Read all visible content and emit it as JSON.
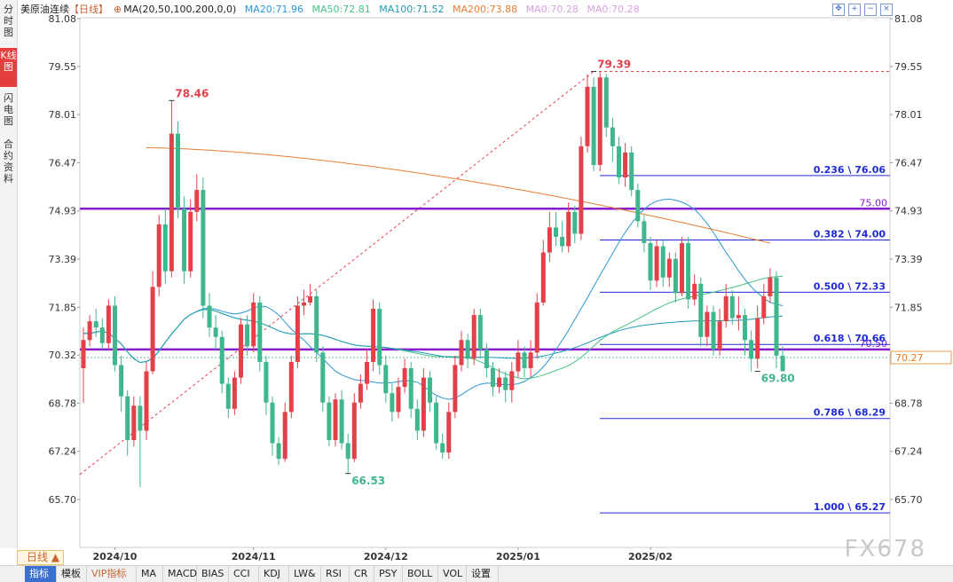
{
  "side_tabs": [
    "分时图",
    "K线图",
    "闪电图",
    "合约资料"
  ],
  "legend": {
    "symbol": "美原油连续",
    "period": "【日线】",
    "ma_params": "MA(20,50,100,200,0,0)",
    "ma20": "MA20:71.96",
    "ma50": "MA50:72.81",
    "ma100": "MA100:71.52",
    "ma200": "MA200:73.88",
    "ma0a": "MA0:70.28",
    "ma0b": "MA0:70.28"
  },
  "colors": {
    "up": "#e2414a",
    "down": "#3fb68b",
    "ma20": "#2a97d8",
    "ma50": "#45c485",
    "ma100": "#1f9bb6",
    "ma200": "#ec7d30",
    "ma0": "#d8a0e0",
    "fib": "#1e2ad6",
    "purple": "#8a1cd0"
  },
  "period_button": "日线",
  "bottom_tabs": [
    "指标",
    "模板",
    "VIP指标",
    "MA",
    "MACD",
    "BIAS",
    "CCI",
    "KDJ",
    "LW&",
    "RSI",
    "CR",
    "PSY",
    "BOLL",
    "VOL",
    "设置"
  ],
  "watermark": "FX678",
  "chart_data": {
    "type": "candlestick",
    "y_ticks": [
      "81.08",
      "79.55",
      "78.01",
      "76.47",
      "74.93",
      "73.39",
      "71.85",
      "70.32",
      "68.78",
      "67.24",
      "65.70"
    ],
    "ylim": [
      65.7,
      81.08
    ],
    "x_labels": [
      {
        "label": "2024/10",
        "index": 5
      },
      {
        "label": "2024/11",
        "index": 27
      },
      {
        "label": "2024/12",
        "index": 48
      },
      {
        "label": "2025/01",
        "index": 69
      },
      {
        "label": "2025/02",
        "index": 90
      }
    ],
    "current_price": "70.27",
    "current_value": 70.27,
    "annotations": [
      {
        "text": "78.46",
        "index": 14,
        "value": 78.46,
        "kind": "high"
      },
      {
        "text": "66.53",
        "index": 42,
        "value": 66.53,
        "kind": "low"
      },
      {
        "text": "79.39",
        "index": 81,
        "value": 79.39,
        "kind": "high"
      },
      {
        "text": "69.80",
        "index": 107,
        "value": 69.8,
        "kind": "low"
      }
    ],
    "fib_levels": [
      {
        "text": "0.236 \\ 76.06",
        "value": 76.06
      },
      {
        "text": "0.382 \\ 74.00",
        "value": 74.0
      },
      {
        "text": "0.500 \\ 72.33",
        "value": 72.33
      },
      {
        "text": "0.618 \\ 70.66",
        "value": 70.66
      },
      {
        "text": "0.786 \\ 68.29",
        "value": 68.29
      },
      {
        "text": "1.000 \\ 65.27",
        "value": 65.27
      }
    ],
    "hlines": [
      {
        "text": "75.00",
        "value": 75.0
      },
      {
        "text": "70.50",
        "value": 70.5
      }
    ],
    "candles": [
      [
        69.9,
        70.8,
        71.2,
        68.8
      ],
      [
        70.8,
        71.4,
        71.6,
        70.6
      ],
      [
        71.4,
        71.2,
        71.8,
        70.9
      ],
      [
        71.2,
        70.7,
        71.5,
        70.5
      ],
      [
        70.7,
        71.9,
        72.1,
        70.5
      ],
      [
        71.9,
        70.0,
        72.2,
        69.8
      ],
      [
        70.0,
        69.0,
        70.3,
        68.5
      ],
      [
        69.0,
        67.6,
        69.2,
        67.1
      ],
      [
        67.6,
        68.7,
        69.0,
        67.4
      ],
      [
        68.7,
        67.9,
        69.0,
        66.1
      ],
      [
        67.9,
        69.8,
        70.1,
        67.6
      ],
      [
        69.8,
        72.5,
        73.0,
        69.7
      ],
      [
        72.5,
        74.5,
        74.8,
        72.2
      ],
      [
        74.5,
        73.0,
        75.0,
        72.6
      ],
      [
        73.0,
        77.4,
        78.46,
        72.8
      ],
      [
        77.4,
        75.0,
        77.8,
        74.7
      ],
      [
        75.0,
        73.0,
        75.4,
        72.6
      ],
      [
        73.0,
        74.9,
        75.3,
        72.8
      ],
      [
        74.9,
        75.6,
        76.1,
        74.6
      ],
      [
        75.6,
        71.9,
        76.0,
        71.5
      ],
      [
        71.9,
        71.2,
        72.3,
        70.9
      ],
      [
        71.2,
        70.9,
        71.6,
        70.5
      ],
      [
        70.9,
        69.4,
        71.1,
        69.1
      ],
      [
        69.4,
        68.6,
        69.6,
        68.3
      ],
      [
        68.6,
        69.6,
        69.8,
        68.4
      ],
      [
        69.6,
        71.3,
        71.5,
        69.4
      ],
      [
        71.3,
        70.6,
        71.6,
        70.3
      ],
      [
        70.6,
        72.0,
        72.3,
        70.4
      ],
      [
        72.0,
        70.1,
        72.2,
        69.8
      ],
      [
        70.1,
        68.8,
        70.3,
        68.4
      ],
      [
        68.8,
        67.5,
        69.0,
        67.1
      ],
      [
        67.5,
        67.0,
        67.7,
        66.8
      ],
      [
        67.0,
        68.5,
        68.8,
        66.9
      ],
      [
        68.5,
        70.1,
        70.3,
        68.3
      ],
      [
        70.1,
        71.9,
        72.2,
        69.9
      ],
      [
        71.9,
        72.0,
        72.4,
        71.6
      ],
      [
        72.0,
        72.2,
        72.6,
        71.9
      ],
      [
        72.2,
        70.4,
        72.4,
        70.1
      ],
      [
        70.4,
        68.8,
        70.6,
        68.5
      ],
      [
        68.8,
        67.6,
        69.0,
        67.4
      ],
      [
        67.6,
        68.9,
        69.1,
        67.4
      ],
      [
        68.9,
        67.5,
        69.2,
        67.3
      ],
      [
        67.5,
        67.0,
        67.8,
        66.53
      ],
      [
        67.0,
        68.8,
        69.1,
        66.9
      ],
      [
        68.8,
        69.4,
        69.7,
        68.6
      ],
      [
        69.4,
        70.1,
        70.5,
        69.2
      ],
      [
        70.1,
        71.8,
        72.1,
        69.8
      ],
      [
        71.8,
        70.0,
        72.0,
        69.7
      ],
      [
        70.0,
        69.1,
        70.3,
        68.8
      ],
      [
        69.1,
        68.5,
        69.4,
        68.2
      ],
      [
        68.5,
        69.3,
        69.6,
        68.3
      ],
      [
        69.3,
        69.9,
        70.2,
        69.1
      ],
      [
        69.9,
        68.6,
        70.1,
        68.3
      ],
      [
        68.6,
        67.9,
        68.9,
        67.6
      ],
      [
        67.9,
        69.6,
        69.9,
        67.7
      ],
      [
        69.6,
        68.8,
        69.8,
        68.5
      ],
      [
        68.8,
        67.5,
        69.0,
        67.3
      ],
      [
        67.5,
        67.2,
        67.8,
        67.0
      ],
      [
        67.2,
        68.5,
        68.8,
        67.0
      ],
      [
        68.5,
        70.0,
        70.3,
        68.3
      ],
      [
        70.0,
        70.8,
        71.1,
        69.8
      ],
      [
        70.8,
        70.2,
        71.0,
        69.9
      ],
      [
        70.2,
        71.6,
        71.8,
        70.0
      ],
      [
        71.6,
        70.5,
        71.8,
        70.2
      ],
      [
        70.5,
        69.9,
        70.7,
        69.6
      ],
      [
        69.9,
        69.3,
        70.1,
        69.0
      ],
      [
        69.3,
        69.6,
        69.9,
        69.1
      ],
      [
        69.6,
        69.2,
        69.8,
        68.8
      ],
      [
        69.2,
        69.8,
        70.1,
        68.8
      ],
      [
        69.8,
        70.4,
        70.8,
        69.6
      ],
      [
        70.4,
        69.9,
        70.6,
        69.6
      ],
      [
        69.9,
        70.4,
        70.8,
        69.6
      ],
      [
        70.4,
        72.0,
        72.3,
        70.2
      ],
      [
        72.0,
        73.6,
        74.0,
        71.9
      ],
      [
        73.6,
        74.4,
        74.9,
        73.3
      ],
      [
        74.4,
        74.1,
        74.9,
        73.8
      ],
      [
        74.1,
        73.8,
        74.6,
        73.6
      ],
      [
        73.8,
        74.9,
        75.2,
        73.6
      ],
      [
        74.9,
        74.2,
        75.1,
        73.9
      ],
      [
        74.2,
        77.0,
        77.3,
        74.0
      ],
      [
        77.0,
        78.9,
        79.3,
        76.8
      ],
      [
        78.9,
        76.4,
        79.2,
        76.2
      ],
      [
        76.4,
        79.2,
        79.39,
        76.2
      ],
      [
        79.2,
        77.6,
        79.3,
        77.3
      ],
      [
        77.6,
        77.0,
        77.9,
        76.5
      ],
      [
        77.0,
        76.0,
        77.3,
        75.8
      ],
      [
        76.0,
        76.8,
        77.1,
        75.7
      ],
      [
        76.8,
        75.6,
        77.0,
        75.4
      ],
      [
        75.6,
        74.6,
        75.8,
        74.4
      ],
      [
        74.6,
        73.9,
        74.8,
        73.6
      ],
      [
        73.9,
        72.7,
        74.1,
        72.4
      ],
      [
        72.7,
        73.8,
        74.0,
        72.5
      ],
      [
        73.8,
        72.8,
        74.0,
        72.5
      ],
      [
        72.8,
        73.4,
        73.6,
        72.5
      ],
      [
        73.4,
        72.3,
        73.6,
        72.0
      ],
      [
        72.3,
        73.9,
        74.1,
        72.2
      ],
      [
        73.9,
        72.1,
        74.1,
        71.8
      ],
      [
        72.1,
        72.6,
        72.9,
        71.9
      ],
      [
        72.6,
        70.9,
        72.8,
        70.6
      ],
      [
        70.9,
        71.7,
        71.9,
        70.6
      ],
      [
        71.7,
        70.5,
        71.9,
        70.3
      ],
      [
        70.5,
        71.4,
        71.8,
        70.3
      ],
      [
        71.4,
        72.2,
        72.6,
        71.2
      ],
      [
        72.2,
        71.5,
        72.4,
        71.3
      ],
      [
        71.5,
        71.6,
        72.2,
        71.1
      ],
      [
        71.6,
        70.8,
        71.8,
        70.3
      ],
      [
        70.8,
        70.2,
        71.1,
        69.8
      ],
      [
        70.2,
        71.5,
        71.9,
        69.9
      ],
      [
        71.5,
        72.2,
        72.6,
        71.3
      ],
      [
        72.2,
        72.8,
        73.1,
        72.0
      ],
      [
        72.8,
        70.3,
        73.0,
        69.9
      ],
      [
        70.3,
        69.8,
        70.6,
        69.8
      ]
    ]
  }
}
